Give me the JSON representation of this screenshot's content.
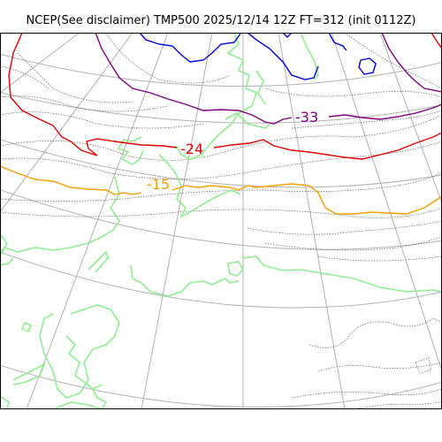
{
  "title": "NCEP(See disclaimer) TMP500 2025/12/14 12Z FT=312 (init 0112Z)",
  "contour_labels": [
    {
      "text": "-33",
      "color": "#800080"
    },
    {
      "text": "-24",
      "color": "#e00000"
    },
    {
      "text": "-15",
      "color": "#f5a000"
    }
  ],
  "colors": {
    "coastline": "#90ee90",
    "graticule": "#b0b0b0",
    "contour_dotted": "#606060",
    "isotherm_minus_33": "#800080",
    "isotherm_minus_24": "#e00000",
    "isotherm_minus_15": "#f5a000",
    "isotherm_minus_42": "#0000e0"
  }
}
